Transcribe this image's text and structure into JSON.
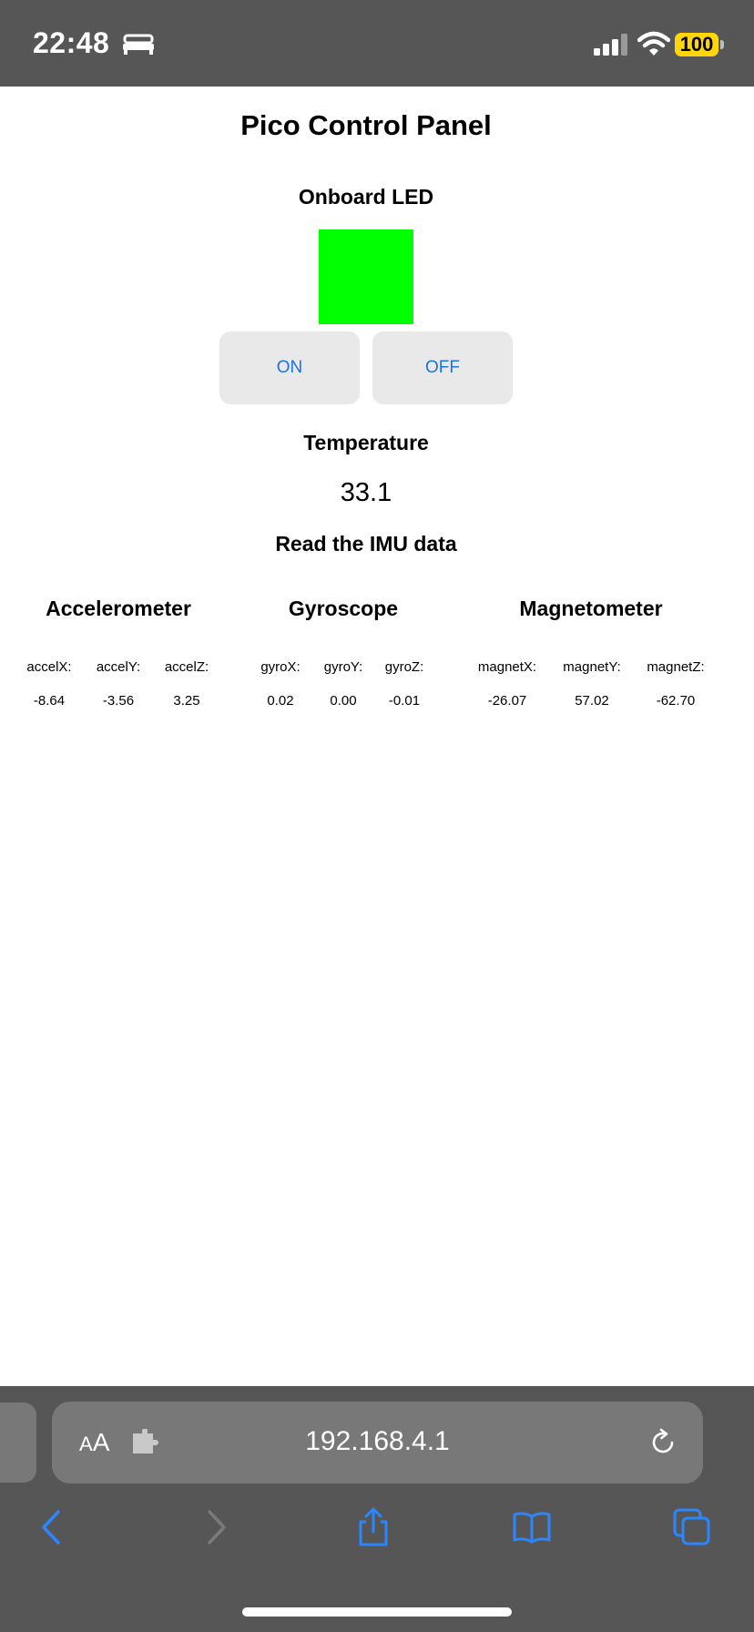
{
  "status_bar": {
    "time": "22:48",
    "battery": "100"
  },
  "page": {
    "title": "Pico Control Panel",
    "led": {
      "heading": "Onboard LED",
      "state_color": "#00ff00",
      "on_label": "ON",
      "off_label": "OFF"
    },
    "temperature": {
      "heading": "Temperature",
      "value": "33.1"
    },
    "imu": {
      "heading": "Read the IMU data",
      "sensors": [
        {
          "title": "Accelerometer",
          "labels": [
            "accelX:",
            "accelY:",
            "accelZ:"
          ],
          "values": [
            "-8.64",
            "-3.56",
            "3.25"
          ]
        },
        {
          "title": "Gyroscope",
          "labels": [
            "gyroX:",
            "gyroY:",
            "gyroZ:"
          ],
          "values": [
            "0.02",
            "0.00",
            "-0.01"
          ]
        },
        {
          "title": "Magnetometer",
          "labels": [
            "magnetX:",
            "magnetY:",
            "magnetZ:"
          ],
          "values": [
            "-26.07",
            "57.02",
            "-62.70"
          ]
        }
      ]
    }
  },
  "browser": {
    "url": "192.168.4.1",
    "aa_label": "AA",
    "icons": [
      "back-icon",
      "forward-icon",
      "share-icon",
      "bookmarks-icon",
      "tabs-icon",
      "reload-icon",
      "extension-icon"
    ]
  },
  "colors": {
    "accent": "#1a73e8",
    "chrome": "#565656",
    "led_on": "#00ff00",
    "battery": "#ffd60a"
  }
}
